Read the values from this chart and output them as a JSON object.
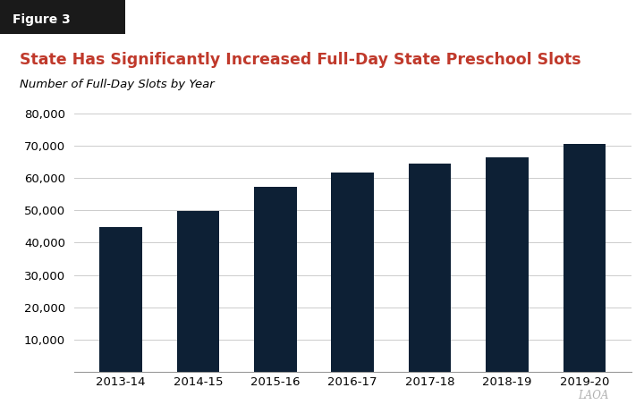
{
  "figure_label": "Figure 3",
  "title": "State Has Significantly Increased Full-Day State Preschool Slots",
  "subtitle": "Number of Full-Day Slots by Year",
  "categories": [
    "2013-14",
    "2014-15",
    "2015-16",
    "2016-17",
    "2017-18",
    "2018-19",
    "2019-20"
  ],
  "values": [
    44800,
    49900,
    57400,
    61800,
    64500,
    66400,
    70500
  ],
  "bar_color": "#0d2035",
  "title_color": "#c0392b",
  "subtitle_color": "#000000",
  "background_color": "#ffffff",
  "ylim": [
    0,
    80000
  ],
  "yticks": [
    0,
    10000,
    20000,
    30000,
    40000,
    50000,
    60000,
    70000,
    80000
  ],
  "watermark": "LAOA",
  "figure_label_bg": "#1a1a1a",
  "figure_label_color": "#ffffff",
  "grid_color": "#cccccc",
  "tick_label_fontsize": 9.5,
  "bar_width": 0.55
}
